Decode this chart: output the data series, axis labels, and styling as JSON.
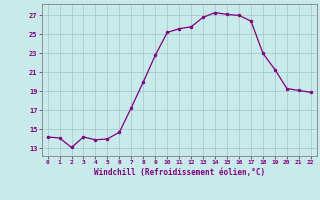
{
  "x": [
    0,
    1,
    2,
    3,
    4,
    5,
    6,
    7,
    8,
    9,
    10,
    11,
    12,
    13,
    14,
    15,
    16,
    17,
    18,
    19,
    20,
    21,
    22
  ],
  "y": [
    14.2,
    14.1,
    13.1,
    14.2,
    13.9,
    14.0,
    14.7,
    17.3,
    20.0,
    22.8,
    25.2,
    25.6,
    25.8,
    26.8,
    27.3,
    27.1,
    27.0,
    26.4,
    23.0,
    21.3,
    19.3,
    19.1,
    18.9
  ],
  "line_color": "#800080",
  "marker_color": "#800080",
  "bg_color": "#c8eaea",
  "grid_color": "#a8cccc",
  "tick_color": "#800080",
  "xlabel": "Windchill (Refroidissement éolien,°C)",
  "ylabel_ticks": [
    13,
    15,
    17,
    19,
    21,
    23,
    25,
    27
  ],
  "xlim": [
    -0.5,
    22.5
  ],
  "ylim": [
    12.2,
    28.2
  ]
}
